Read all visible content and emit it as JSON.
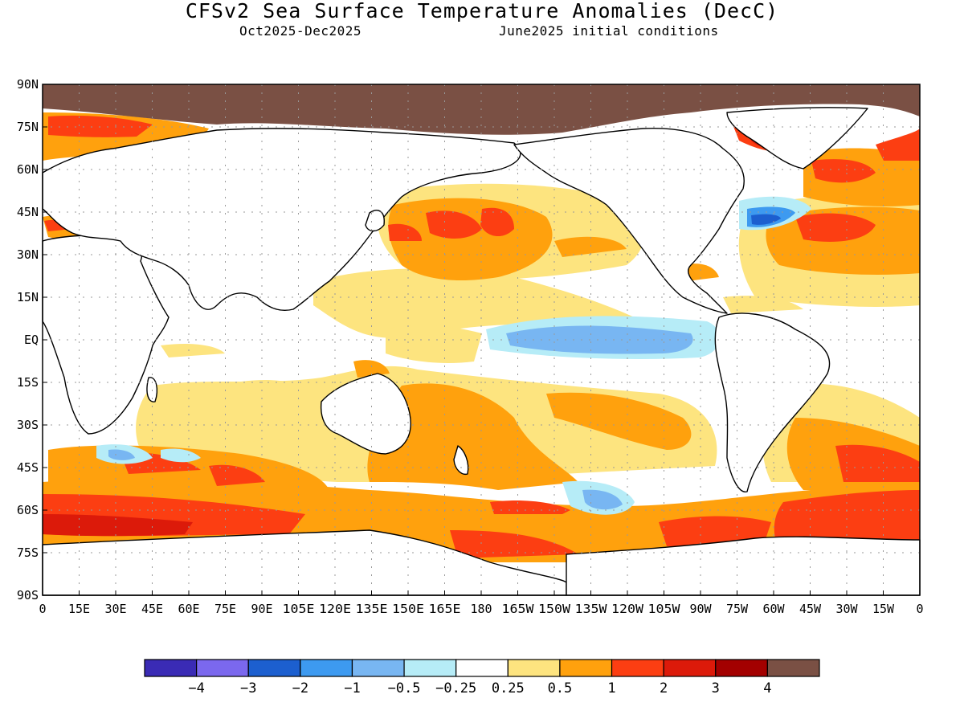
{
  "title": "CFSv2 Sea Surface Temperature Anomalies (DecC)",
  "subtitle_left": "Oct2025-Dec2025",
  "subtitle_right": "June2025 initial conditions",
  "y_ticks": [
    "90N",
    "75N",
    "60N",
    "45N",
    "30N",
    "15N",
    "EQ",
    "15S",
    "30S",
    "45S",
    "60S",
    "75S",
    "90S"
  ],
  "x_ticks": [
    "0",
    "15E",
    "30E",
    "45E",
    "60E",
    "75E",
    "90E",
    "105E",
    "120E",
    "135E",
    "150E",
    "165E",
    "180",
    "165W",
    "150W",
    "135W",
    "120W",
    "105W",
    "90W",
    "75W",
    "60W",
    "45W",
    "30W",
    "15W",
    "0"
  ],
  "colorbar": {
    "colors": [
      "#3a2bb5",
      "#7b68ee",
      "#1c5fcf",
      "#3d9af0",
      "#78b6f2",
      "#b6ecf7",
      "#ffffff",
      "#fde47f",
      "#ffa10d",
      "#fc3e12",
      "#dc1a0a",
      "#a30000",
      "#7a5044"
    ],
    "labels": [
      "-4",
      "-3",
      "-2",
      "-1",
      "-0.5",
      "-0.25",
      "0.25",
      "0.5",
      "1",
      "2",
      "3",
      "4"
    ]
  },
  "land_color": "#ffffff",
  "ice_color": "#7a5044"
}
